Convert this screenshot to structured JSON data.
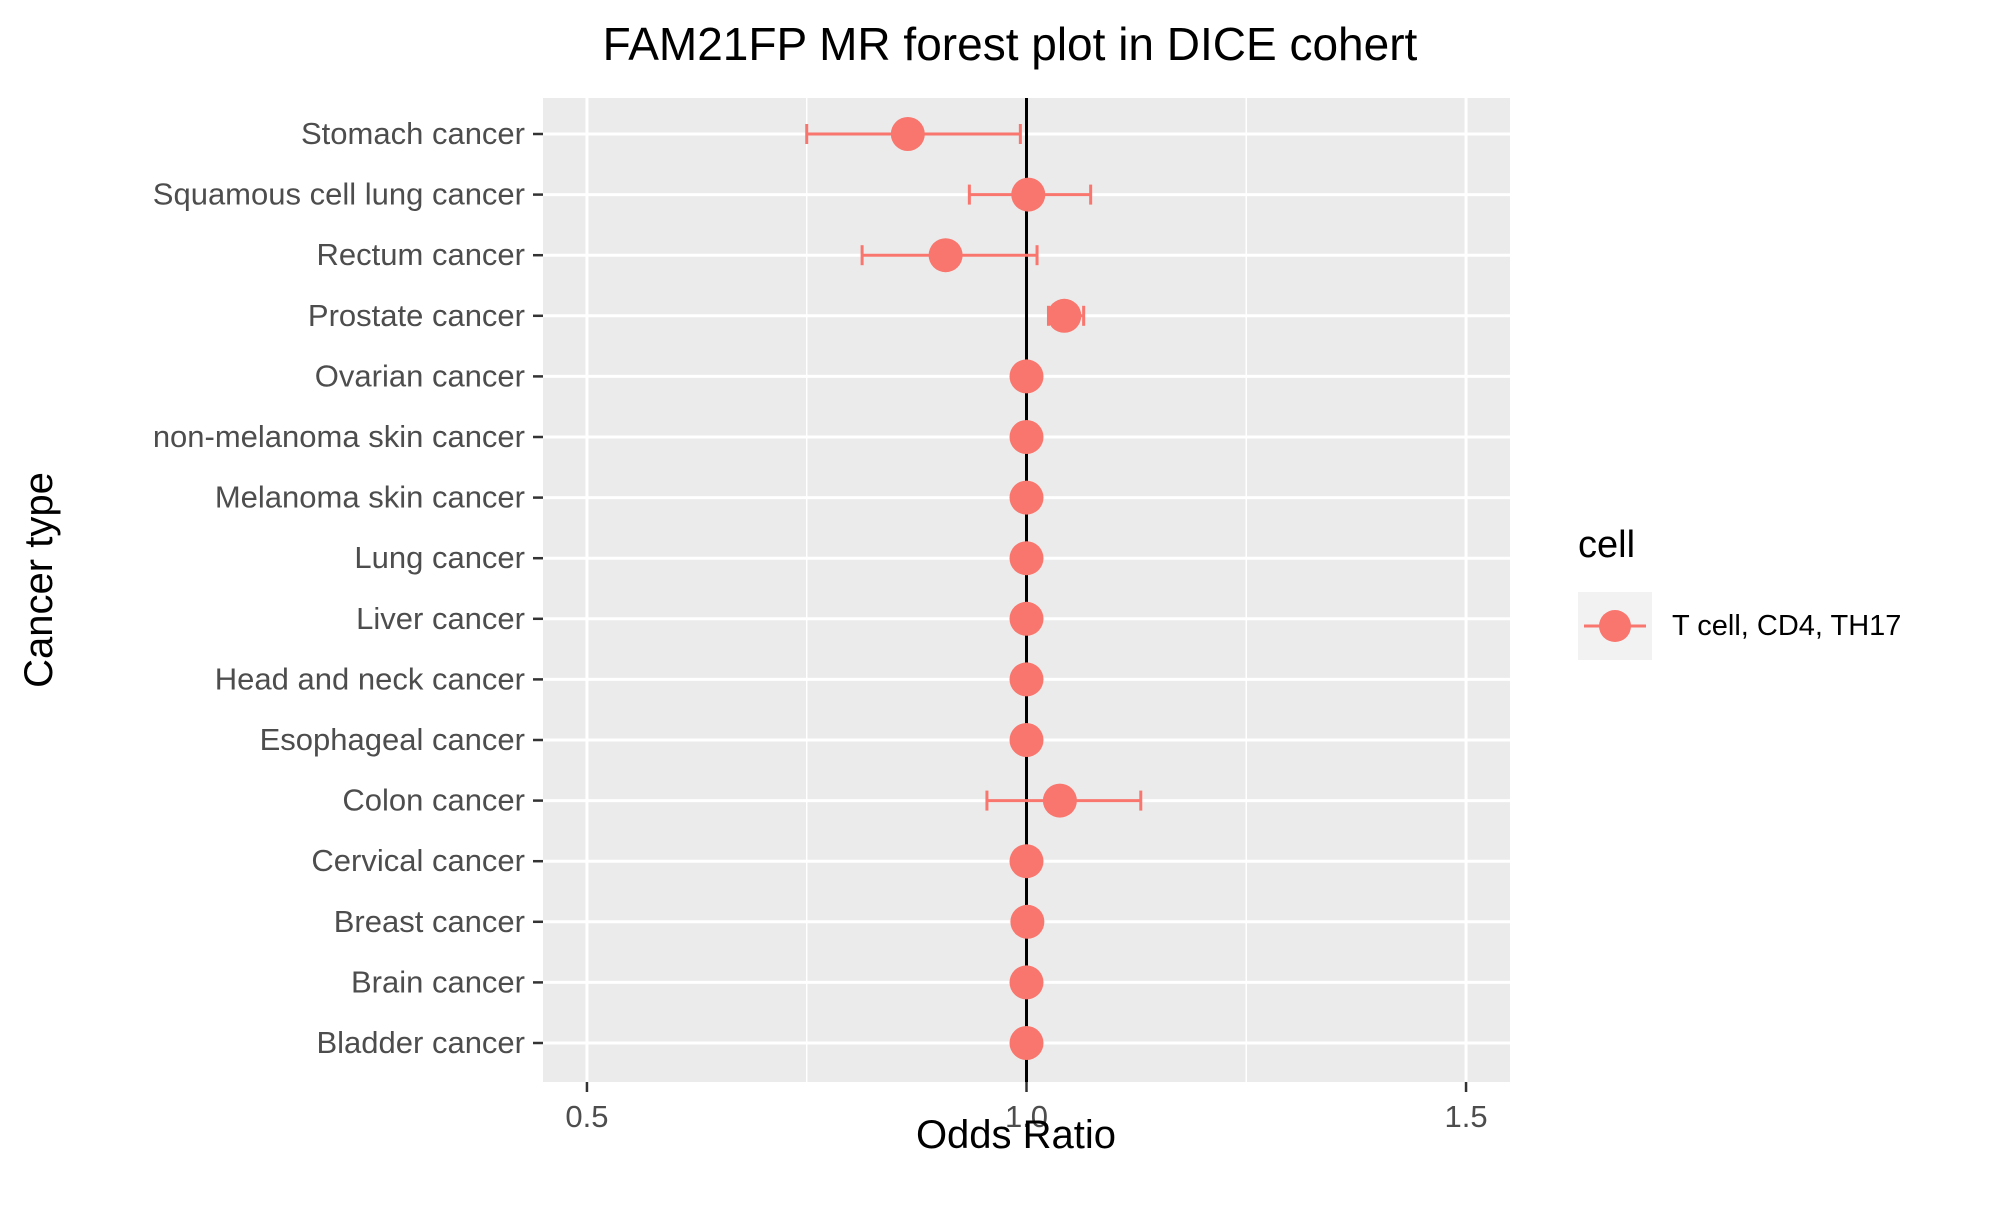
{
  "chart_data": {
    "type": "scatter",
    "subtype": "forest-plot",
    "title": "FAM21FP MR forest plot in DICE cohert",
    "xlabel": "Odds Ratio",
    "ylabel": "Cancer type",
    "xlim": [
      0.45,
      1.55
    ],
    "xticks": [
      0.5,
      1.0,
      1.5
    ],
    "xtick_labels": [
      "0.5",
      "1.0",
      "1.5"
    ],
    "reference_line": 1.0,
    "grid": true,
    "legend": {
      "title": "cell",
      "placement": "right",
      "entries": [
        "T cell, CD4, TH17"
      ]
    },
    "colors": {
      "series": "#F8766D",
      "panel": "#EBEBEB",
      "grid": "#FFFFFF",
      "refline": "#000000",
      "text": "#4D4D4D"
    },
    "series": [
      {
        "name": "T cell, CD4, TH17",
        "categories": [
          "Stomach cancer",
          "Squamous cell lung cancer",
          "Rectum cancer",
          "Prostate cancer",
          "Ovarian cancer",
          "non-melanoma skin cancer",
          "Melanoma skin cancer",
          "Lung cancer",
          "Liver cancer",
          "Head and neck cancer",
          "Esophageal cancer",
          "Colon cancer",
          "Cervical cancer",
          "Breast cancer",
          "Brain cancer",
          "Bladder cancer"
        ],
        "or": [
          0.865,
          1.002,
          0.908,
          1.043,
          1.0,
          1.0,
          1.0,
          1.0,
          1.0,
          1.0,
          1.0,
          1.038,
          1.0,
          1.001,
          1.0,
          1.0
        ],
        "lower": [
          0.75,
          0.935,
          0.813,
          1.025,
          0.999,
          0.999,
          0.999,
          0.999,
          0.999,
          0.999,
          0.999,
          0.955,
          0.999,
          1.0,
          0.999,
          0.999
        ],
        "upper": [
          0.993,
          1.073,
          1.012,
          1.065,
          1.001,
          1.001,
          1.001,
          1.001,
          1.001,
          1.001,
          1.001,
          1.13,
          1.001,
          1.002,
          1.001,
          1.001
        ]
      }
    ]
  }
}
